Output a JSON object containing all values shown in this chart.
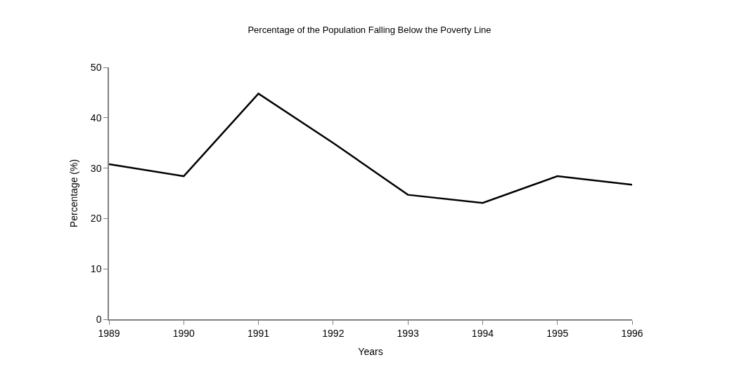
{
  "chart_data": {
    "type": "line",
    "title": "Percentage of the Population Falling Below the Poverty Line",
    "xlabel": "Years",
    "ylabel": "Percentage (%)",
    "x": [
      1989,
      1990,
      1991,
      1992,
      1993,
      1994,
      1995,
      1996
    ],
    "series": [
      {
        "color": "#000000",
        "values": [
          30.8,
          28.4,
          44.8,
          35.0,
          24.7,
          23.1,
          28.4,
          26.7
        ]
      }
    ],
    "xlim": [
      1989,
      1996
    ],
    "xticks": [
      1989,
      1990,
      1991,
      1992,
      1993,
      1994,
      1995,
      1996
    ],
    "ylim": [
      0,
      50
    ],
    "yticks": [
      0,
      10,
      20,
      30,
      40,
      50
    ],
    "legend": false,
    "marker": "none",
    "line_style": "solid"
  }
}
